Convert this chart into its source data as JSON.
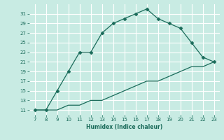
{
  "xlabel": "Humidex (Indice chaleur)",
  "x_values": [
    7,
    8,
    9,
    10,
    11,
    12,
    13,
    14,
    15,
    16,
    17,
    18,
    19,
    20,
    21,
    22,
    23
  ],
  "y_curve1": [
    11,
    11,
    15,
    19,
    23,
    23,
    27,
    29,
    30,
    31,
    32,
    30,
    29,
    28,
    25,
    22,
    21
  ],
  "y_curve2": [
    11,
    11,
    11,
    12,
    12,
    13,
    13,
    14,
    15,
    16,
    17,
    17,
    18,
    19,
    20,
    20,
    21
  ],
  "line_color": "#1a6b5a",
  "bg_color": "#c8ebe3",
  "grid_color": "#ffffff",
  "xlim": [
    6.5,
    23.5
  ],
  "ylim": [
    10,
    33
  ],
  "xticks": [
    7,
    8,
    9,
    10,
    11,
    12,
    13,
    14,
    15,
    16,
    17,
    18,
    19,
    20,
    21,
    22,
    23
  ],
  "yticks": [
    11,
    13,
    15,
    17,
    19,
    21,
    23,
    25,
    27,
    29,
    31
  ]
}
